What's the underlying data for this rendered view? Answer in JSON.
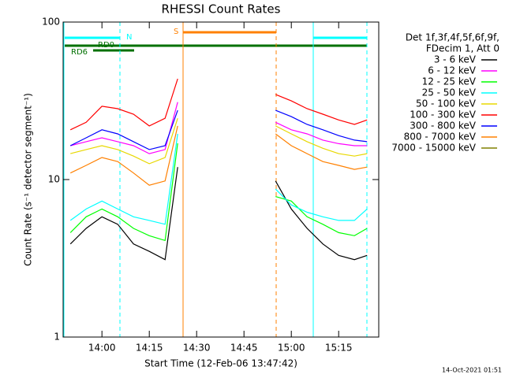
{
  "chart_data": {
    "type": "line",
    "title": "RHESSI Count Rates",
    "xlabel": "Start Time (12-Feb-06 13:47:42)",
    "ylabel": "Count Rate (s⁻¹ detector segment⁻¹)",
    "legend_header": [
      "Det 1f,3f,4f,5f,6f,9f,",
      "FDecim 1, Att 0"
    ],
    "annotations": [
      "N",
      "S",
      "RD0",
      "RD6"
    ],
    "footer": "14-Oct-2021 01:51",
    "log_y": true,
    "xlim": [
      "13:47:42",
      "15:27:42"
    ],
    "xticks": [
      "14:00",
      "14:15",
      "14:30",
      "14:45",
      "15:00",
      "15:15"
    ],
    "ylim": [
      1,
      100
    ],
    "yticks": [
      1,
      10,
      100
    ],
    "x": [
      "13:50",
      "13:55",
      "14:00",
      "14:05",
      "14:10",
      "14:15",
      "14:20",
      "14:24",
      "14:40",
      "14:55",
      "15:00",
      "15:05",
      "15:10",
      "15:15",
      "15:20",
      "15:24"
    ],
    "series": [
      {
        "name": "3 - 6 keV",
        "color": "#000000",
        "values": [
          3.9,
          4.9,
          5.8,
          5.2,
          3.9,
          3.5,
          3.1,
          12,
          null,
          9.8,
          6.5,
          4.9,
          3.9,
          3.3,
          3.1,
          3.3
        ]
      },
      {
        "name": "6 - 12 keV",
        "color": "#ff00ff",
        "values": [
          16.4,
          17.4,
          18.4,
          17.4,
          16.4,
          14.6,
          15.5,
          31,
          null,
          23.1,
          20.7,
          19.5,
          17.8,
          16.9,
          16.4,
          16.4
        ]
      },
      {
        "name": "12 - 25 keV",
        "color": "#00ff00",
        "values": [
          4.6,
          5.8,
          6.5,
          5.8,
          4.9,
          4.4,
          4.1,
          17,
          null,
          7.8,
          7.3,
          5.8,
          5.2,
          4.6,
          4.4,
          4.9
        ]
      },
      {
        "name": "25 - 50 keV",
        "color": "#00ffff",
        "values": [
          5.5,
          6.5,
          7.3,
          6.5,
          5.8,
          5.5,
          5.2,
          19.5,
          null,
          8.7,
          6.9,
          6.2,
          5.8,
          5.5,
          5.5,
          6.5
        ]
      },
      {
        "name": "50 - 100 keV",
        "color": "#e8d800",
        "values": [
          14.6,
          15.5,
          16.4,
          15.5,
          14.1,
          12.6,
          13.8,
          24.5,
          null,
          21.9,
          19.5,
          17.4,
          15.8,
          14.6,
          14.1,
          14.6
        ]
      },
      {
        "name": "100 - 300 keV",
        "color": "#ff0000",
        "values": [
          20.7,
          23.1,
          29.2,
          28.2,
          26.0,
          21.9,
          24.5,
          43.6,
          null,
          34.7,
          31.6,
          28.2,
          26.0,
          23.9,
          22.4,
          23.9
        ]
      },
      {
        "name": "300 - 800 keV",
        "color": "#0000ff",
        "values": [
          16.4,
          18.4,
          20.7,
          19.5,
          17.4,
          15.5,
          16.4,
          27.5,
          null,
          27.5,
          25.1,
          22.4,
          20.7,
          19.0,
          17.8,
          17.4
        ]
      },
      {
        "name": "800 - 7000 keV",
        "color": "#ff8000",
        "values": [
          11.0,
          12.3,
          13.8,
          13.0,
          11.0,
          9.2,
          9.8,
          21.9,
          null,
          19.5,
          16.4,
          14.6,
          13.0,
          12.3,
          11.6,
          12.0
        ]
      },
      {
        "name": "7000 - 15000 keV",
        "color": "#808000",
        "values": [
          null,
          null,
          null,
          null,
          null,
          null,
          null,
          null,
          null,
          null,
          null,
          null,
          null,
          null,
          null,
          null
        ]
      }
    ]
  }
}
